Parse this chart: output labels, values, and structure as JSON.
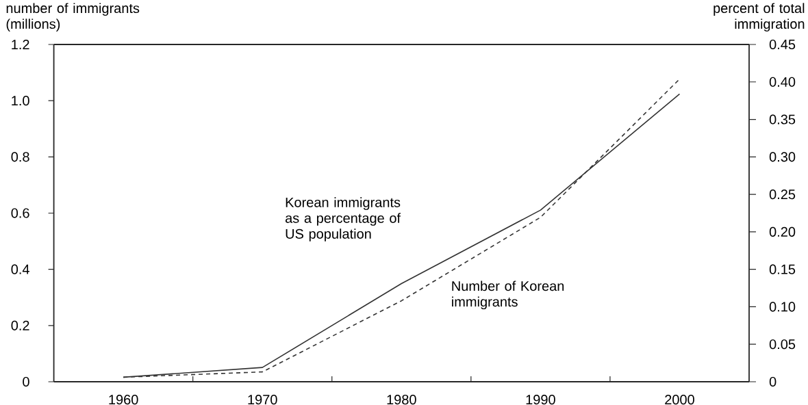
{
  "chart_data": {
    "type": "line",
    "xlabel": null,
    "ylabel": "number of immigrants (millions)",
    "y2label": "percent of total immigration",
    "x": [
      1960,
      1970,
      1980,
      1990,
      2000
    ],
    "series": [
      {
        "color": "#333333",
        "line_style": "dashed",
        "values": [
          0.016,
          0.035,
          0.288,
          0.585,
          1.077
        ]
      },
      {
        "color": "#333333",
        "line_style": "solid",
        "axis": "y2",
        "values": [
          0.006,
          0.019,
          0.131,
          0.229,
          0.384
        ]
      }
    ],
    "xlim": [
      1955,
      2005
    ],
    "xticks": [
      1960,
      {
        "value": 1965,
        "label": null
      },
      1970,
      {
        "value": 1975,
        "label": null
      },
      1980,
      {
        "value": 1985,
        "label": null
      },
      1990,
      {
        "value": 1995,
        "label": null
      },
      2000
    ],
    "ylim": [
      0,
      1.2
    ],
    "yticks": [
      0,
      0.2,
      0.4,
      0.6,
      0.8,
      {
        "value": 1.0,
        "label": "1.0"
      },
      1.2
    ],
    "y2lim": [
      0,
      0.45
    ],
    "y2ticks": [
      0,
      0.05,
      {
        "value": 0.1,
        "label": "0.10"
      },
      0.15,
      {
        "value": 0.2,
        "label": "0.20"
      },
      0.25,
      {
        "value": 0.3,
        "label": "0.30"
      },
      0.35,
      {
        "value": 0.4,
        "label": "0.40"
      },
      0.45
    ],
    "annotations": [
      "Korean immigrants as a percentage of US population",
      "Number of Korean immigrants"
    ],
    "grid": false
  }
}
